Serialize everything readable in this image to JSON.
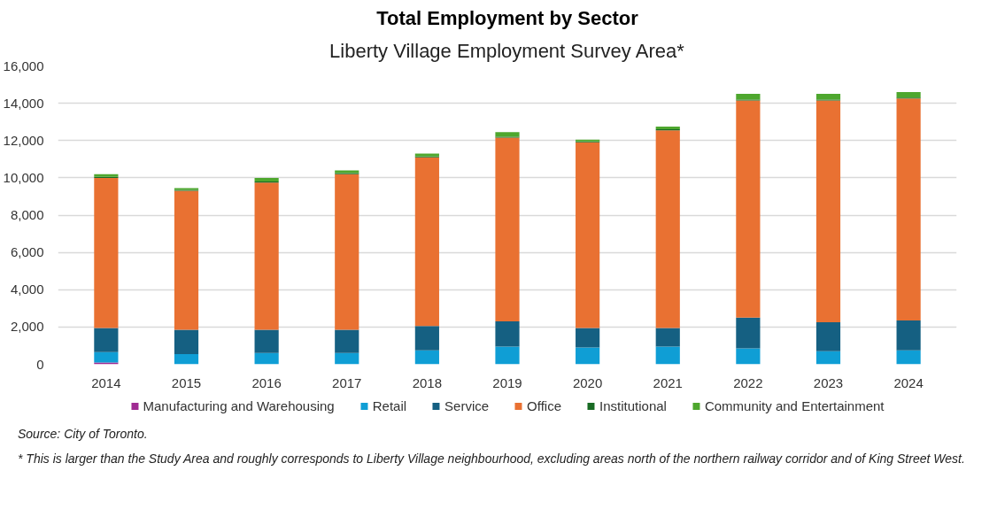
{
  "chart_data": {
    "type": "bar",
    "stacked": true,
    "title": "Total Employment by Sector",
    "subtitle": "Liberty Village Employment Survey Area*",
    "categories": [
      "2014",
      "2015",
      "2016",
      "2017",
      "2018",
      "2019",
      "2020",
      "2021",
      "2022",
      "2023",
      "2024"
    ],
    "series": [
      {
        "name": "Manufacturing and Warehousing",
        "color": "#a02b93",
        "values": [
          100,
          0,
          0,
          0,
          0,
          0,
          0,
          0,
          0,
          0,
          0
        ]
      },
      {
        "name": "Retail",
        "color": "#0f9ed5",
        "values": [
          550,
          550,
          600,
          600,
          750,
          950,
          900,
          950,
          850,
          700,
          750
        ]
      },
      {
        "name": "Service",
        "color": "#156082",
        "values": [
          1300,
          1300,
          1250,
          1250,
          1300,
          1350,
          1050,
          1000,
          1650,
          1550,
          1600
        ]
      },
      {
        "name": "Office",
        "color": "#e97132",
        "values": [
          8050,
          7450,
          7900,
          8350,
          9050,
          9850,
          9950,
          10600,
          11650,
          11900,
          11900
        ]
      },
      {
        "name": "Institutional",
        "color": "#196b24",
        "values": [
          50,
          50,
          50,
          50,
          50,
          50,
          50,
          50,
          50,
          50,
          50
        ]
      },
      {
        "name": "Community and Entertainment",
        "color": "#4ea72e",
        "values": [
          150,
          100,
          200,
          150,
          150,
          250,
          100,
          150,
          300,
          300,
          300
        ]
      }
    ],
    "ylim": [
      0,
      16000
    ],
    "yticks": [
      0,
      {
        "value": 2000,
        "label": "2,000"
      },
      {
        "value": 4000,
        "label": "4,000"
      },
      {
        "value": 6000,
        "label": "6,000"
      },
      {
        "value": 8000,
        "label": "8,000"
      },
      {
        "value": 10000,
        "label": "10,000"
      },
      {
        "value": 12000,
        "label": "12,000"
      },
      {
        "value": 14000,
        "label": "14,000"
      },
      {
        "value": 16000,
        "label": "16,000"
      }
    ],
    "grid": "y",
    "legend": "bottom",
    "annotations": [
      "Source: City of Toronto.",
      "* This is larger than the Study Area and roughly corresponds to Liberty Village neighbourhood, excluding areas north of the northern railway corridor and of King Street West."
    ]
  }
}
